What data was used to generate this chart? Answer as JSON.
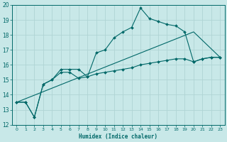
{
  "background_color": "#c8e8e8",
  "grid_color": "#b0d4d4",
  "line_color": "#006868",
  "xlabel": "Humidex (Indice chaleur)",
  "xlim": [
    -0.5,
    23.5
  ],
  "ylim": [
    12,
    20
  ],
  "xticks": [
    0,
    1,
    2,
    3,
    4,
    5,
    6,
    7,
    8,
    9,
    10,
    11,
    12,
    13,
    14,
    15,
    16,
    17,
    18,
    19,
    20,
    21,
    22,
    23
  ],
  "yticks": [
    12,
    13,
    14,
    15,
    16,
    17,
    18,
    19,
    20
  ],
  "line1_x": [
    0,
    1,
    2,
    3,
    4,
    5,
    6,
    7,
    8,
    9,
    10,
    11,
    12,
    13,
    14,
    15,
    16,
    17,
    18,
    19,
    20,
    21,
    22,
    23
  ],
  "line1_y": [
    13.5,
    13.5,
    12.5,
    14.7,
    15.0,
    15.7,
    15.7,
    15.7,
    15.2,
    16.8,
    17.0,
    17.8,
    18.2,
    18.5,
    19.8,
    19.1,
    18.9,
    18.7,
    18.6,
    18.2,
    16.2,
    16.4,
    16.5,
    16.5
  ],
  "line2_x": [
    0,
    1,
    2,
    3,
    4,
    5,
    6,
    7,
    8,
    9,
    10,
    11,
    12,
    13,
    14,
    15,
    16,
    17,
    18,
    19,
    20,
    21,
    22,
    23
  ],
  "line2_y": [
    13.5,
    13.5,
    12.5,
    14.7,
    15.0,
    15.5,
    15.5,
    15.1,
    15.2,
    15.4,
    15.5,
    15.6,
    15.7,
    15.8,
    16.0,
    16.1,
    16.2,
    16.3,
    16.4,
    16.4,
    16.2,
    16.4,
    16.5,
    16.5
  ],
  "line3_x": [
    0,
    20,
    23
  ],
  "line3_y": [
    13.5,
    18.2,
    16.5
  ]
}
